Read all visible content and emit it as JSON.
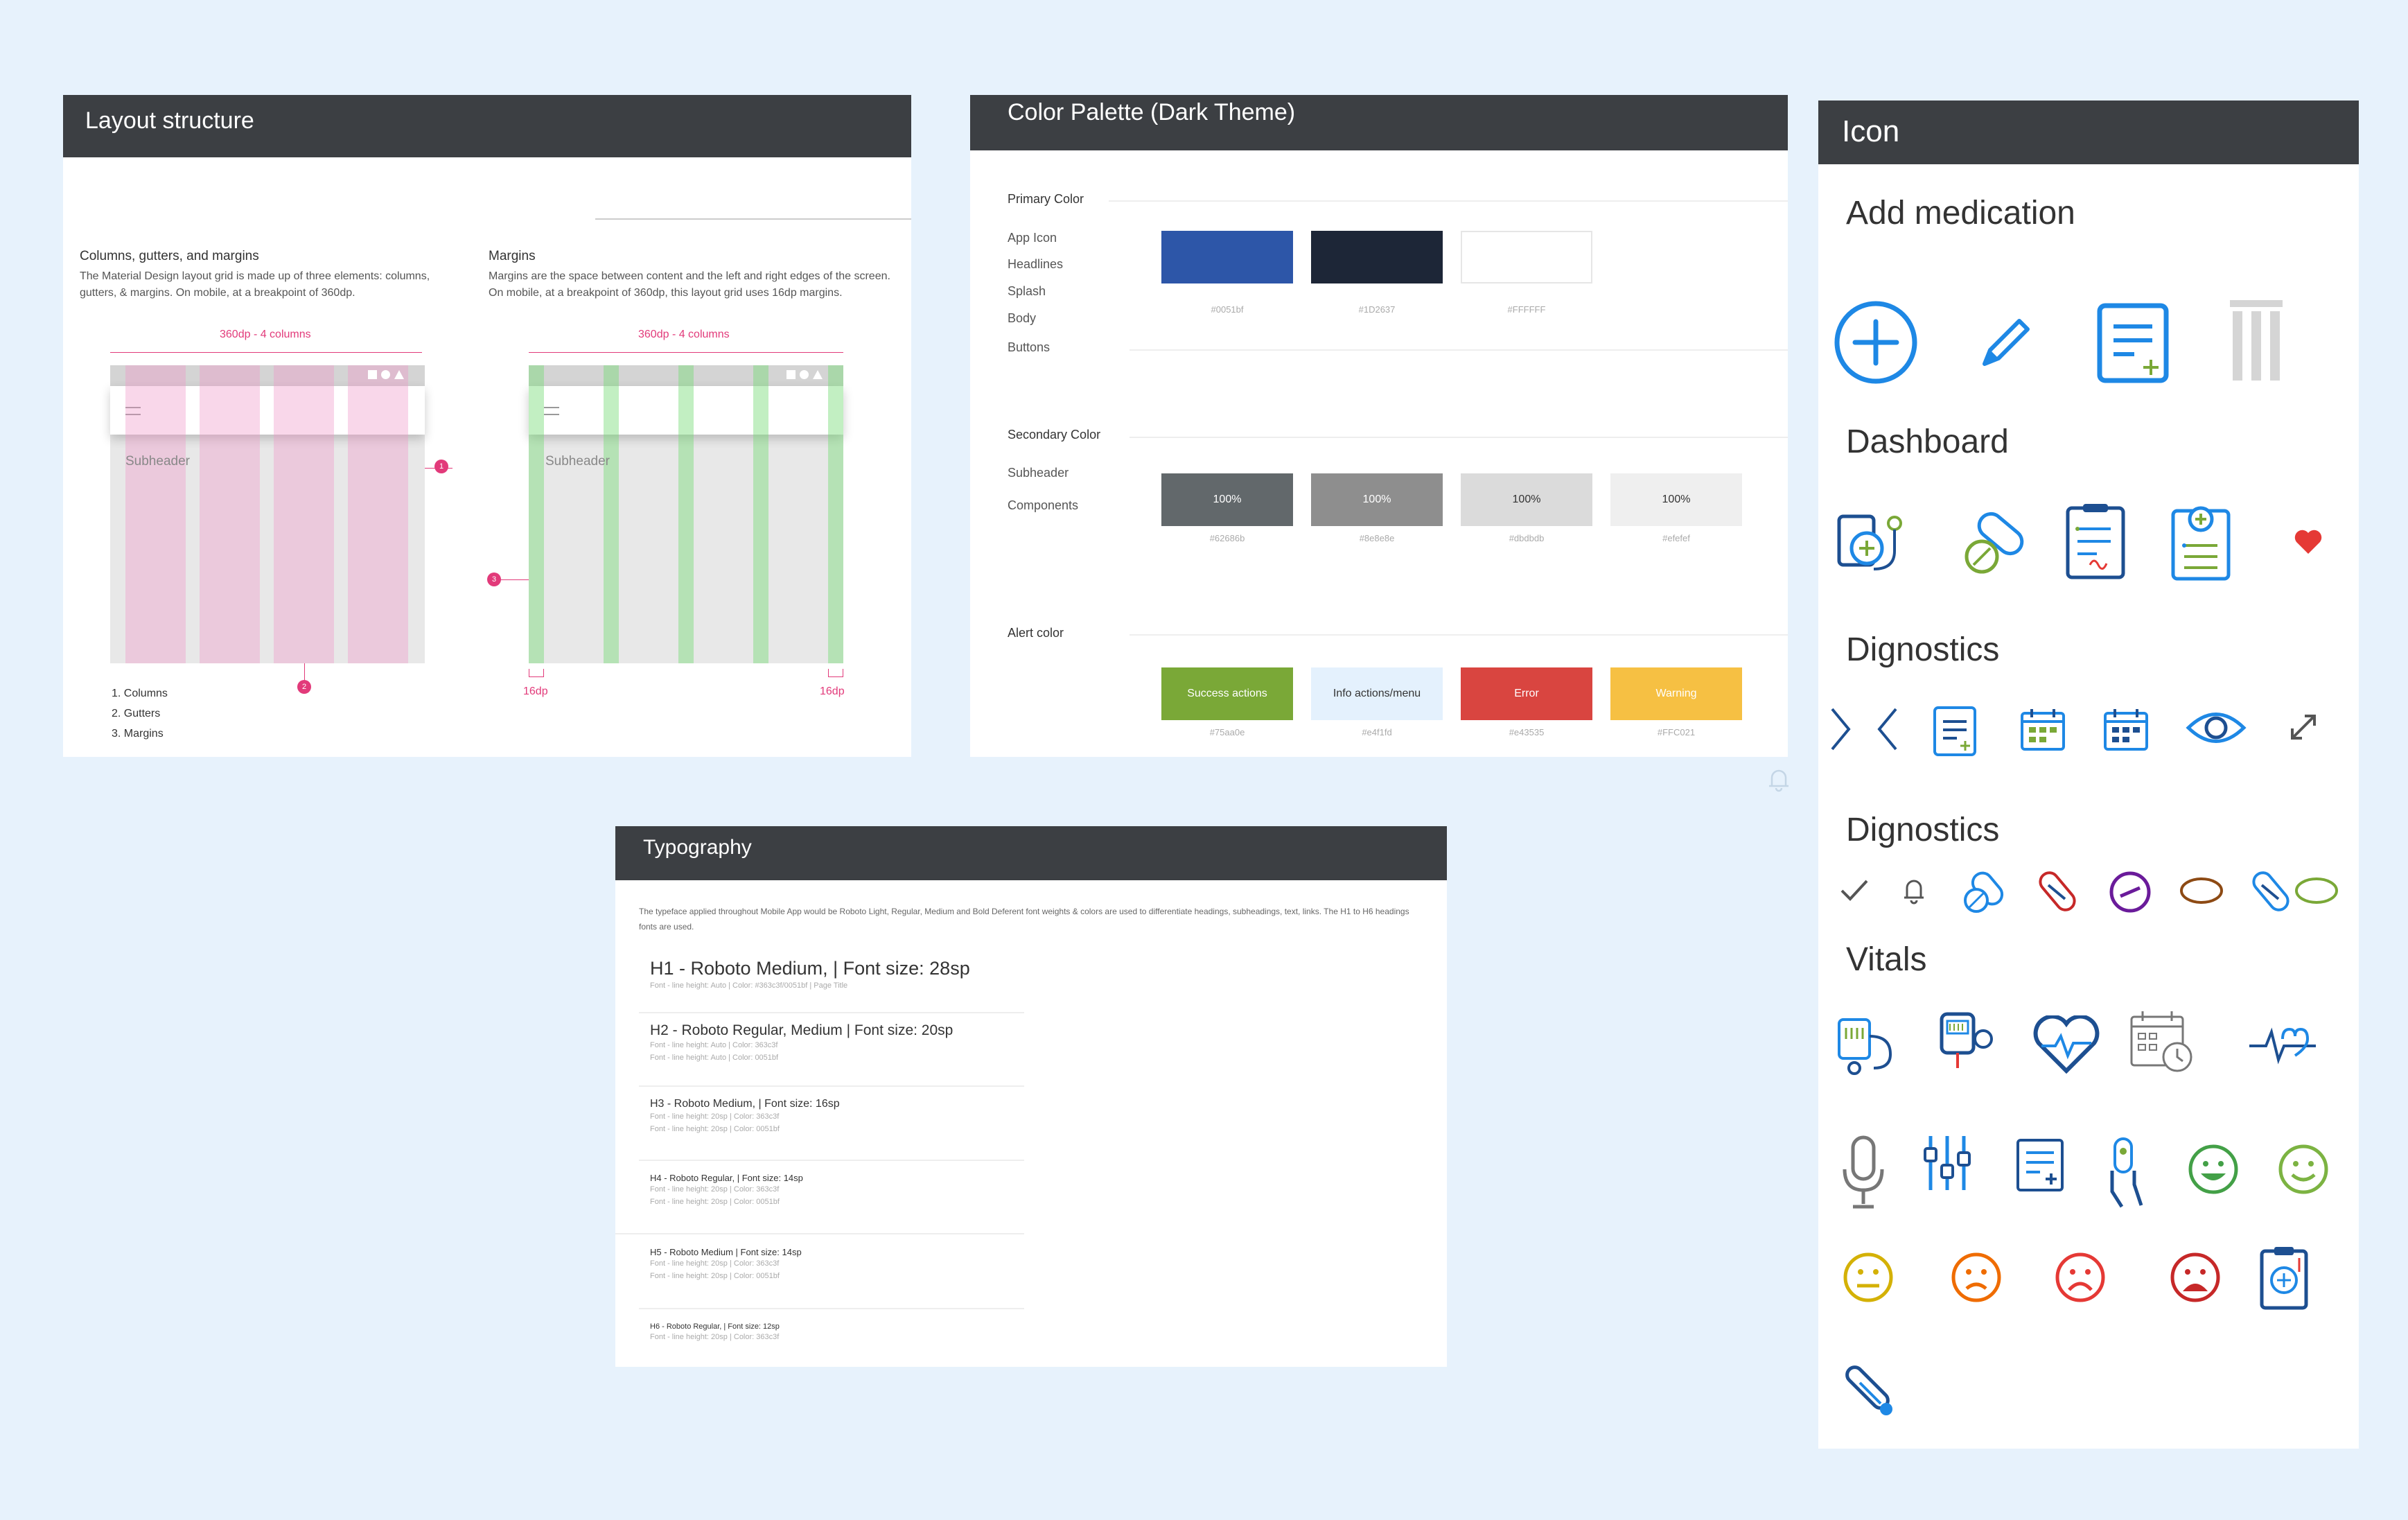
{
  "layout": {
    "title": "Layout structure",
    "left": {
      "heading": "Columns, gutters, and margins",
      "body": "The Material Design layout grid is made up of three elements: columns, gutters, & margins. On mobile, at a breakpoint of 360dp.",
      "dim_label": "360dp - 4 columns",
      "subheader": "Subheader",
      "marker_1": "1",
      "marker_2": "2",
      "list": [
        "1. Columns",
        "2. Gutters",
        "3. Margins"
      ]
    },
    "right": {
      "heading": "Margins",
      "body": "Margins are the space between content and the left and right edges of the screen. On mobile, at a breakpoint of 360dp, this layout grid uses 16dp margins.",
      "dim_label": "360dp - 4 columns",
      "subheader": "Subheader",
      "marker_3": "3",
      "margin_left": "16dp",
      "margin_right": "16dp"
    }
  },
  "palette": {
    "title": "Color Palette (Dark Theme)",
    "primary": {
      "heading": "Primary Color",
      "items": [
        "App Icon",
        "Headlines",
        "Splash",
        "Body",
        "Buttons"
      ],
      "swatches": [
        {
          "label": "",
          "hex": "#0051bf",
          "color": "#2d56a8"
        },
        {
          "label": "",
          "hex": "#1D2637",
          "color": "#1d2637"
        },
        {
          "label": "",
          "hex": "#FFFFFF",
          "color": "#ffffff"
        }
      ]
    },
    "secondary": {
      "heading": "Secondary Color",
      "items": [
        "Subheader",
        "Components"
      ],
      "swatches": [
        {
          "label": "100%",
          "hex": "#62686b",
          "color": "#62686b",
          "text": "#ffffff"
        },
        {
          "label": "100%",
          "hex": "#8e8e8e",
          "color": "#8e8e8e",
          "text": "#ffffff"
        },
        {
          "label": "100%",
          "hex": "#dbdbdb",
          "color": "#dbdbdb",
          "text": "#333333"
        },
        {
          "label": "100%",
          "hex": "#efefef",
          "color": "#efefef",
          "text": "#333333"
        }
      ]
    },
    "alert": {
      "heading": "Alert color",
      "swatches": [
        {
          "label": "Success actions",
          "hex": "#75aa0e",
          "color": "#7aa837",
          "text": "#ffffff"
        },
        {
          "label": "Info actions/menu",
          "hex": "#e4f1fd",
          "color": "#e4f1fd",
          "text": "#333333"
        },
        {
          "label": "Error",
          "hex": "#e43535",
          "color": "#d94540",
          "text": "#ffffff"
        },
        {
          "label": "Warning",
          "hex": "#FFC021",
          "color": "#f6c043",
          "text": "#ffffff"
        }
      ]
    }
  },
  "typography": {
    "title": "Typography",
    "intro": "The typeface applied throughout  Mobile App would be Roboto Light, Regular, Medium and Bold Deferent font weights & colors are used to differentiate  headings, subheadings, text, links. The H1 to H6 headings fonts are used.",
    "rows": [
      {
        "main": "H1 - Roboto Medium,  |  Font size: 28sp",
        "sub": [
          "Font - line height: Auto  |  Color: #363c3f/0051bf  |  Page Title"
        ]
      },
      {
        "main": "H2 - Roboto Regular, Medium   |  Font size: 20sp",
        "sub": [
          "Font - line height: Auto  |  Color: 363c3f",
          "Font - line height: Auto  |  Color: 0051bf"
        ]
      },
      {
        "main": "H3 - Roboto Medium,  |  Font size: 16sp",
        "sub": [
          "Font - line height: 20sp  |  Color: 363c3f",
          "Font - line height: 20sp  |  Color: 0051bf"
        ]
      },
      {
        "main": "H4 - Roboto Regular,  |  Font size: 14sp",
        "sub": [
          "Font - line height: 20sp  |  Color: 363c3f",
          "Font - line height: 20sp  |  Color: 0051bf"
        ]
      },
      {
        "main": "H5 - Roboto  Medium |  Font size: 14sp",
        "sub": [
          "Font - line height: 20sp  |  Color: 363c3f",
          "Font - line height: 20sp  |  Color: 0051bf"
        ]
      },
      {
        "main": "H6 - Roboto Regular,  |  Font size: 12sp",
        "sub": [
          "Font - line height: 20sp  |  Color: 363c3f"
        ]
      }
    ]
  },
  "icons": {
    "title": "Icon",
    "sections": [
      {
        "title": "Add medication",
        "icons": [
          "add-circle-icon",
          "pencil-icon",
          "document-add-icon",
          "trash-bin-icon"
        ]
      },
      {
        "title": "Dashboard",
        "icons": [
          "medicine-bottle-icon",
          "pill-capsule-icon",
          "clipboard-chart-icon",
          "clipboard-add-icon",
          "heart-icon"
        ]
      },
      {
        "title": "Dignostics",
        "icons": [
          "chevron-right-icon",
          "chevron-left-icon",
          "document-add-icon",
          "calendar-icon",
          "calendar-icon",
          "eye-icon",
          "expand-icon"
        ]
      },
      {
        "title": "Dignostics",
        "icons": [
          "check-icon",
          "bell-icon",
          "pills-icon",
          "capsule-icon",
          "circle-minus-icon",
          "oval-icon",
          "capsule-icon",
          "oval-icon"
        ]
      },
      {
        "title": "Vitals",
        "icons": [
          "blood-pressure-icon",
          "glucose-meter-icon",
          "heart-pulse-icon",
          "calendar-clock-icon",
          "heartbeat-line-icon",
          "microphone-icon",
          "sliders-icon",
          "document-add-icon",
          "finger-sensor-icon",
          "smiley-very-happy-icon",
          "smiley-happy-icon",
          "smiley-neutral-icon",
          "smiley-sad-icon",
          "smiley-very-sad-icon",
          "smiley-crying-icon",
          "clipboard-device-icon",
          "thermometer-icon"
        ]
      }
    ],
    "colors": {
      "primary": "#1e88e5",
      "navy": "#1d4f91",
      "heart": "#e53935"
    }
  }
}
